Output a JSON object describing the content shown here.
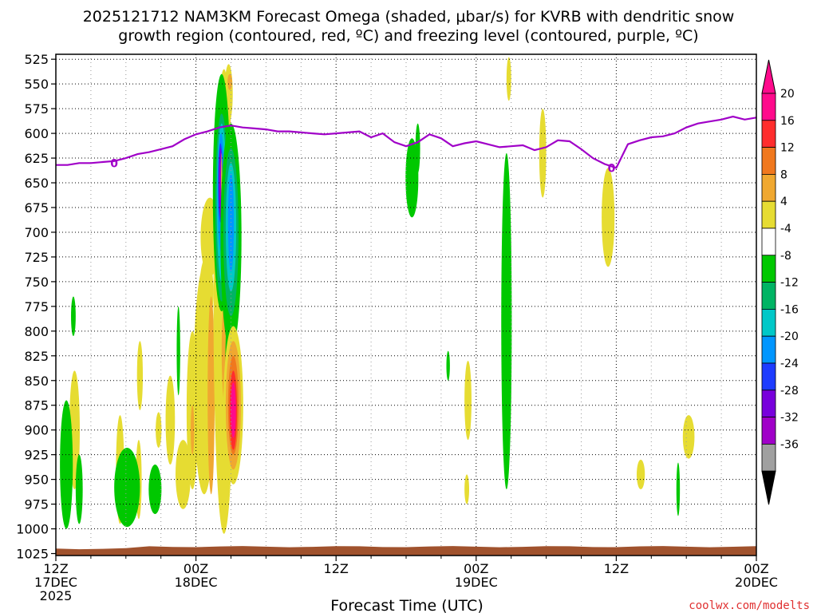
{
  "chart_data": {
    "type": "heatmap",
    "title_lines": [
      "2025121712 NAM3KM Forecast Omega (shaded, μbar/s) for KVRB with dendritic snow",
      "growth region (contoured, red, ºC) and freezing level (contoured, purple, ºC)"
    ],
    "xlabel": "Forecast Time (UTC)",
    "ylabel": "",
    "y_ticks": [
      525,
      550,
      575,
      600,
      625,
      650,
      675,
      700,
      725,
      750,
      775,
      800,
      825,
      850,
      875,
      900,
      925,
      950,
      975,
      1000,
      1025
    ],
    "x_ticks": [
      {
        "hours": 0,
        "lines": [
          "12Z",
          "17DEC",
          "2025"
        ]
      },
      {
        "hours": 12,
        "lines": [
          "00Z",
          "18DEC"
        ]
      },
      {
        "hours": 24,
        "lines": [
          "12Z"
        ]
      },
      {
        "hours": 36,
        "lines": [
          "00Z",
          "19DEC"
        ]
      },
      {
        "hours": 48,
        "lines": [
          "12Z"
        ]
      },
      {
        "hours": 60,
        "lines": [
          "00Z",
          "20DEC"
        ]
      }
    ],
    "x_range_hours": [
      0,
      60
    ],
    "y_range_hPa": [
      520,
      1027
    ],
    "colorbar": {
      "labels": [
        "20",
        "16",
        "12",
        "8",
        "4",
        "-4",
        "-8",
        "-12",
        "-16",
        "-20",
        "-24",
        "-28",
        "-32",
        "-36"
      ],
      "colors": [
        "#ff0a8c",
        "#ff2d2d",
        "#f0781e",
        "#f0a830",
        "#e6dc32",
        "#ffffff",
        "#00c800",
        "#00b464",
        "#00c8c8",
        "#0096ff",
        "#1e3cff",
        "#7800dc",
        "#a000c8",
        "#a0a0a0"
      ],
      "top_arrow_color": "#ff0a8c",
      "bottom_arrow_color": "#000000"
    },
    "freezing_level_label": "0",
    "freezing_level": {
      "color": "#a000c8",
      "points": [
        [
          0,
          632
        ],
        [
          1,
          632
        ],
        [
          2,
          630
        ],
        [
          3,
          630
        ],
        [
          4,
          629
        ],
        [
          5,
          628
        ],
        [
          6,
          625
        ],
        [
          7,
          621
        ],
        [
          8,
          619
        ],
        [
          9,
          616
        ],
        [
          10,
          613
        ],
        [
          11,
          606
        ],
        [
          12,
          601
        ],
        [
          13,
          598
        ],
        [
          14,
          594
        ],
        [
          15,
          592
        ],
        [
          16,
          594
        ],
        [
          17,
          595
        ],
        [
          18,
          596
        ],
        [
          19,
          598
        ],
        [
          20,
          598
        ],
        [
          21,
          599
        ],
        [
          22,
          600
        ],
        [
          23,
          601
        ],
        [
          24,
          600
        ],
        [
          25,
          599
        ],
        [
          26,
          598
        ],
        [
          27,
          604
        ],
        [
          28,
          600
        ],
        [
          29,
          609
        ],
        [
          30,
          613
        ],
        [
          31,
          609
        ],
        [
          32,
          601
        ],
        [
          33,
          605
        ],
        [
          34,
          613
        ],
        [
          35,
          610
        ],
        [
          36,
          608
        ],
        [
          37,
          611
        ],
        [
          38,
          614
        ],
        [
          39,
          613
        ],
        [
          40,
          612
        ],
        [
          41,
          617
        ],
        [
          42,
          614
        ],
        [
          43,
          607
        ],
        [
          44,
          608
        ],
        [
          45,
          616
        ],
        [
          46,
          625
        ],
        [
          47,
          631
        ],
        [
          48,
          635
        ],
        [
          49,
          611
        ],
        [
          50,
          607
        ],
        [
          51,
          604
        ],
        [
          52,
          603
        ],
        [
          53,
          600
        ],
        [
          54,
          594
        ],
        [
          55,
          590
        ],
        [
          56,
          588
        ],
        [
          57,
          586
        ],
        [
          58,
          583
        ],
        [
          59,
          586
        ],
        [
          60,
          584
        ]
      ]
    },
    "surface_pressure_hPa": 1018,
    "surface_color": "#a0522d",
    "omega_regions": [
      {
        "color": "#e6dc32",
        "cx": 14.8,
        "cy": 560,
        "rx": 0.35,
        "ry": 30
      },
      {
        "color": "#f0a830",
        "cx": 14.9,
        "cy": 548,
        "rx": 0.2,
        "ry": 8
      },
      {
        "color": "#e6dc32",
        "cx": 13.2,
        "cy": 705,
        "rx": 0.8,
        "ry": 40
      },
      {
        "color": "#e6dc32",
        "cx": 12.9,
        "cy": 760,
        "rx": 0.6,
        "ry": 35
      },
      {
        "color": "#e6dc32",
        "cx": 12.7,
        "cy": 850,
        "rx": 0.9,
        "ry": 115
      },
      {
        "color": "#f0a830",
        "cx": 13.3,
        "cy": 865,
        "rx": 0.3,
        "ry": 100
      },
      {
        "color": "#e6dc32",
        "cx": 14.4,
        "cy": 770,
        "rx": 0.9,
        "ry": 235
      },
      {
        "color": "#f0a830",
        "cx": 14.6,
        "cy": 820,
        "rx": 0.4,
        "ry": 60
      },
      {
        "color": "#00c800",
        "cx": 14.2,
        "cy": 660,
        "rx": 0.75,
        "ry": 120
      },
      {
        "color": "#00b464",
        "cx": 14.2,
        "cy": 675,
        "rx": 0.55,
        "ry": 95
      },
      {
        "color": "#00c8c8",
        "cx": 14.2,
        "cy": 670,
        "rx": 0.42,
        "ry": 80
      },
      {
        "color": "#0096ff",
        "cx": 14.15,
        "cy": 660,
        "rx": 0.3,
        "ry": 60
      },
      {
        "color": "#1e3cff",
        "cx": 14.1,
        "cy": 650,
        "rx": 0.2,
        "ry": 40
      },
      {
        "color": "#7800dc",
        "cx": 14.1,
        "cy": 650,
        "rx": 0.15,
        "ry": 35
      },
      {
        "color": "#a000c8",
        "cx": 14.1,
        "cy": 648,
        "rx": 0.08,
        "ry": 20
      },
      {
        "color": "#e6dc32",
        "cx": 14.2,
        "cy": 645,
        "rx": 0.04,
        "ry": 25
      },
      {
        "color": "#00c800",
        "cx": 14.6,
        "cy": 715,
        "rx": 0.35,
        "ry": 55
      },
      {
        "color": "#00c800",
        "cx": 15.0,
        "cy": 705,
        "rx": 0.9,
        "ry": 115
      },
      {
        "color": "#00b464",
        "cx": 15.0,
        "cy": 700,
        "rx": 0.65,
        "ry": 85
      },
      {
        "color": "#00c8c8",
        "cx": 15.0,
        "cy": 695,
        "rx": 0.45,
        "ry": 65
      },
      {
        "color": "#0096ff",
        "cx": 15.0,
        "cy": 690,
        "rx": 0.25,
        "ry": 50
      },
      {
        "color": "#00c800",
        "cx": 14.7,
        "cy": 850,
        "rx": 0.2,
        "ry": 65
      },
      {
        "color": "#e6dc32",
        "cx": 15.2,
        "cy": 875,
        "rx": 0.85,
        "ry": 80
      },
      {
        "color": "#f0a830",
        "cx": 15.2,
        "cy": 875,
        "rx": 0.65,
        "ry": 65
      },
      {
        "color": "#f0781e",
        "cx": 15.2,
        "cy": 875,
        "rx": 0.45,
        "ry": 50
      },
      {
        "color": "#ff2d2d",
        "cx": 15.2,
        "cy": 880,
        "rx": 0.32,
        "ry": 40
      },
      {
        "color": "#ff0a8c",
        "cx": 15.2,
        "cy": 880,
        "rx": 0.22,
        "ry": 28
      },
      {
        "color": "#e6dc32",
        "cx": 11.7,
        "cy": 880,
        "rx": 0.5,
        "ry": 80
      },
      {
        "color": "#f0a830",
        "cx": 11.7,
        "cy": 900,
        "rx": 0.15,
        "ry": 25
      },
      {
        "color": "#e6dc32",
        "cx": 9.8,
        "cy": 890,
        "rx": 0.4,
        "ry": 45
      },
      {
        "color": "#e6dc32",
        "cx": 10.9,
        "cy": 945,
        "rx": 0.65,
        "ry": 35
      },
      {
        "color": "#e6dc32",
        "cx": 8.8,
        "cy": 900,
        "rx": 0.25,
        "ry": 18
      },
      {
        "color": "#e6dc32",
        "cx": 7.2,
        "cy": 845,
        "rx": 0.25,
        "ry": 35
      },
      {
        "color": "#e6dc32",
        "cx": 5.5,
        "cy": 940,
        "rx": 0.35,
        "ry": 55
      },
      {
        "color": "#e6dc32",
        "cx": 7.1,
        "cy": 950,
        "rx": 0.25,
        "ry": 40
      },
      {
        "color": "#e6dc32",
        "cx": 1.6,
        "cy": 900,
        "rx": 0.45,
        "ry": 60
      },
      {
        "color": "#00c800",
        "cx": 1.5,
        "cy": 785,
        "rx": 0.2,
        "ry": 20
      },
      {
        "color": "#00c800",
        "cx": 0.9,
        "cy": 935,
        "rx": 0.55,
        "ry": 65
      },
      {
        "color": "#00c800",
        "cx": 2.0,
        "cy": 960,
        "rx": 0.3,
        "ry": 35
      },
      {
        "color": "#00c800",
        "cx": 6.1,
        "cy": 958,
        "rx": 1.1,
        "ry": 40
      },
      {
        "color": "#00c800",
        "cx": 8.5,
        "cy": 960,
        "rx": 0.55,
        "ry": 25
      },
      {
        "color": "#00c800",
        "cx": 10.5,
        "cy": 820,
        "rx": 0.15,
        "ry": 45
      },
      {
        "color": "#00c800",
        "cx": 33.6,
        "cy": 835,
        "rx": 0.15,
        "ry": 15
      },
      {
        "color": "#00c800",
        "cx": 30.5,
        "cy": 645,
        "rx": 0.55,
        "ry": 40
      },
      {
        "color": "#00c800",
        "cx": 31.0,
        "cy": 615,
        "rx": 0.2,
        "ry": 25
      },
      {
        "color": "#00c800",
        "cx": 38.6,
        "cy": 790,
        "rx": 0.45,
        "ry": 170
      },
      {
        "color": "#00c800",
        "cx": 38.6,
        "cy": 900,
        "rx": 0.25,
        "ry": 40
      },
      {
        "color": "#e6dc32",
        "cx": 35.3,
        "cy": 870,
        "rx": 0.3,
        "ry": 40
      },
      {
        "color": "#e6dc32",
        "cx": 35.2,
        "cy": 960,
        "rx": 0.2,
        "ry": 15
      },
      {
        "color": "#e6dc32",
        "cx": 38.8,
        "cy": 545,
        "rx": 0.2,
        "ry": 22
      },
      {
        "color": "#e6dc32",
        "cx": 41.7,
        "cy": 620,
        "rx": 0.3,
        "ry": 45
      },
      {
        "color": "#e6dc32",
        "cx": 47.3,
        "cy": 685,
        "rx": 0.55,
        "ry": 50
      },
      {
        "color": "#e6dc32",
        "cx": 50.1,
        "cy": 945,
        "rx": 0.35,
        "ry": 15
      },
      {
        "color": "#e6dc32",
        "cx": 54.2,
        "cy": 907,
        "rx": 0.5,
        "ry": 22
      },
      {
        "color": "#00c800",
        "cx": 53.3,
        "cy": 960,
        "rx": 0.15,
        "ry": 27
      }
    ]
  },
  "credit": "coolwx.com/modelts"
}
